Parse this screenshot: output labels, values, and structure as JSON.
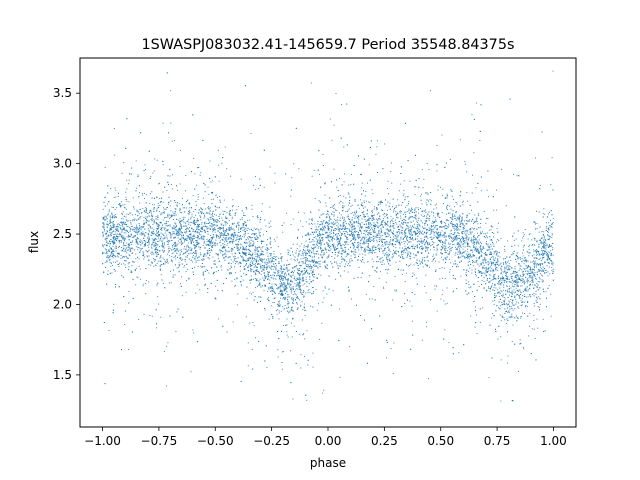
{
  "chart_data": {
    "type": "scatter",
    "title": "1SWASPJ083032.41-145659.7 Period 35548.84375s",
    "xlabel": "phase",
    "ylabel": "flux",
    "xlim": [
      -1.1,
      1.1
    ],
    "ylim": [
      1.13,
      3.75
    ],
    "x_ticks": [
      -1.0,
      -0.75,
      -0.5,
      -0.25,
      0.0,
      0.25,
      0.5,
      0.75,
      1.0
    ],
    "x_tick_labels": [
      "−1.00",
      "−0.75",
      "−0.50",
      "−0.25",
      "0.00",
      "0.25",
      "0.50",
      "0.75",
      "1.00"
    ],
    "y_ticks": [
      1.5,
      2.0,
      2.5,
      3.0,
      3.5
    ],
    "y_tick_labels": [
      "1.5",
      "2.0",
      "2.5",
      "3.0",
      "3.5"
    ],
    "grid": false,
    "marker_color": "#1f77b4",
    "series": [
      {
        "x_range": [
          -1.0,
          1.0
        ],
        "profile": [
          [
            -1.0,
            2.47
          ],
          [
            -0.9,
            2.5
          ],
          [
            -0.75,
            2.5
          ],
          [
            -0.6,
            2.5
          ],
          [
            -0.45,
            2.47
          ],
          [
            -0.35,
            2.4
          ],
          [
            -0.28,
            2.27
          ],
          [
            -0.2,
            2.12
          ],
          [
            -0.12,
            2.2
          ],
          [
            -0.05,
            2.4
          ],
          [
            0.0,
            2.47
          ],
          [
            0.1,
            2.5
          ],
          [
            0.25,
            2.5
          ],
          [
            0.4,
            2.5
          ],
          [
            0.55,
            2.47
          ],
          [
            0.65,
            2.4
          ],
          [
            0.72,
            2.27
          ],
          [
            0.8,
            2.12
          ],
          [
            0.88,
            2.2
          ],
          [
            0.95,
            2.35
          ],
          [
            1.0,
            2.45
          ]
        ]
      }
    ]
  }
}
